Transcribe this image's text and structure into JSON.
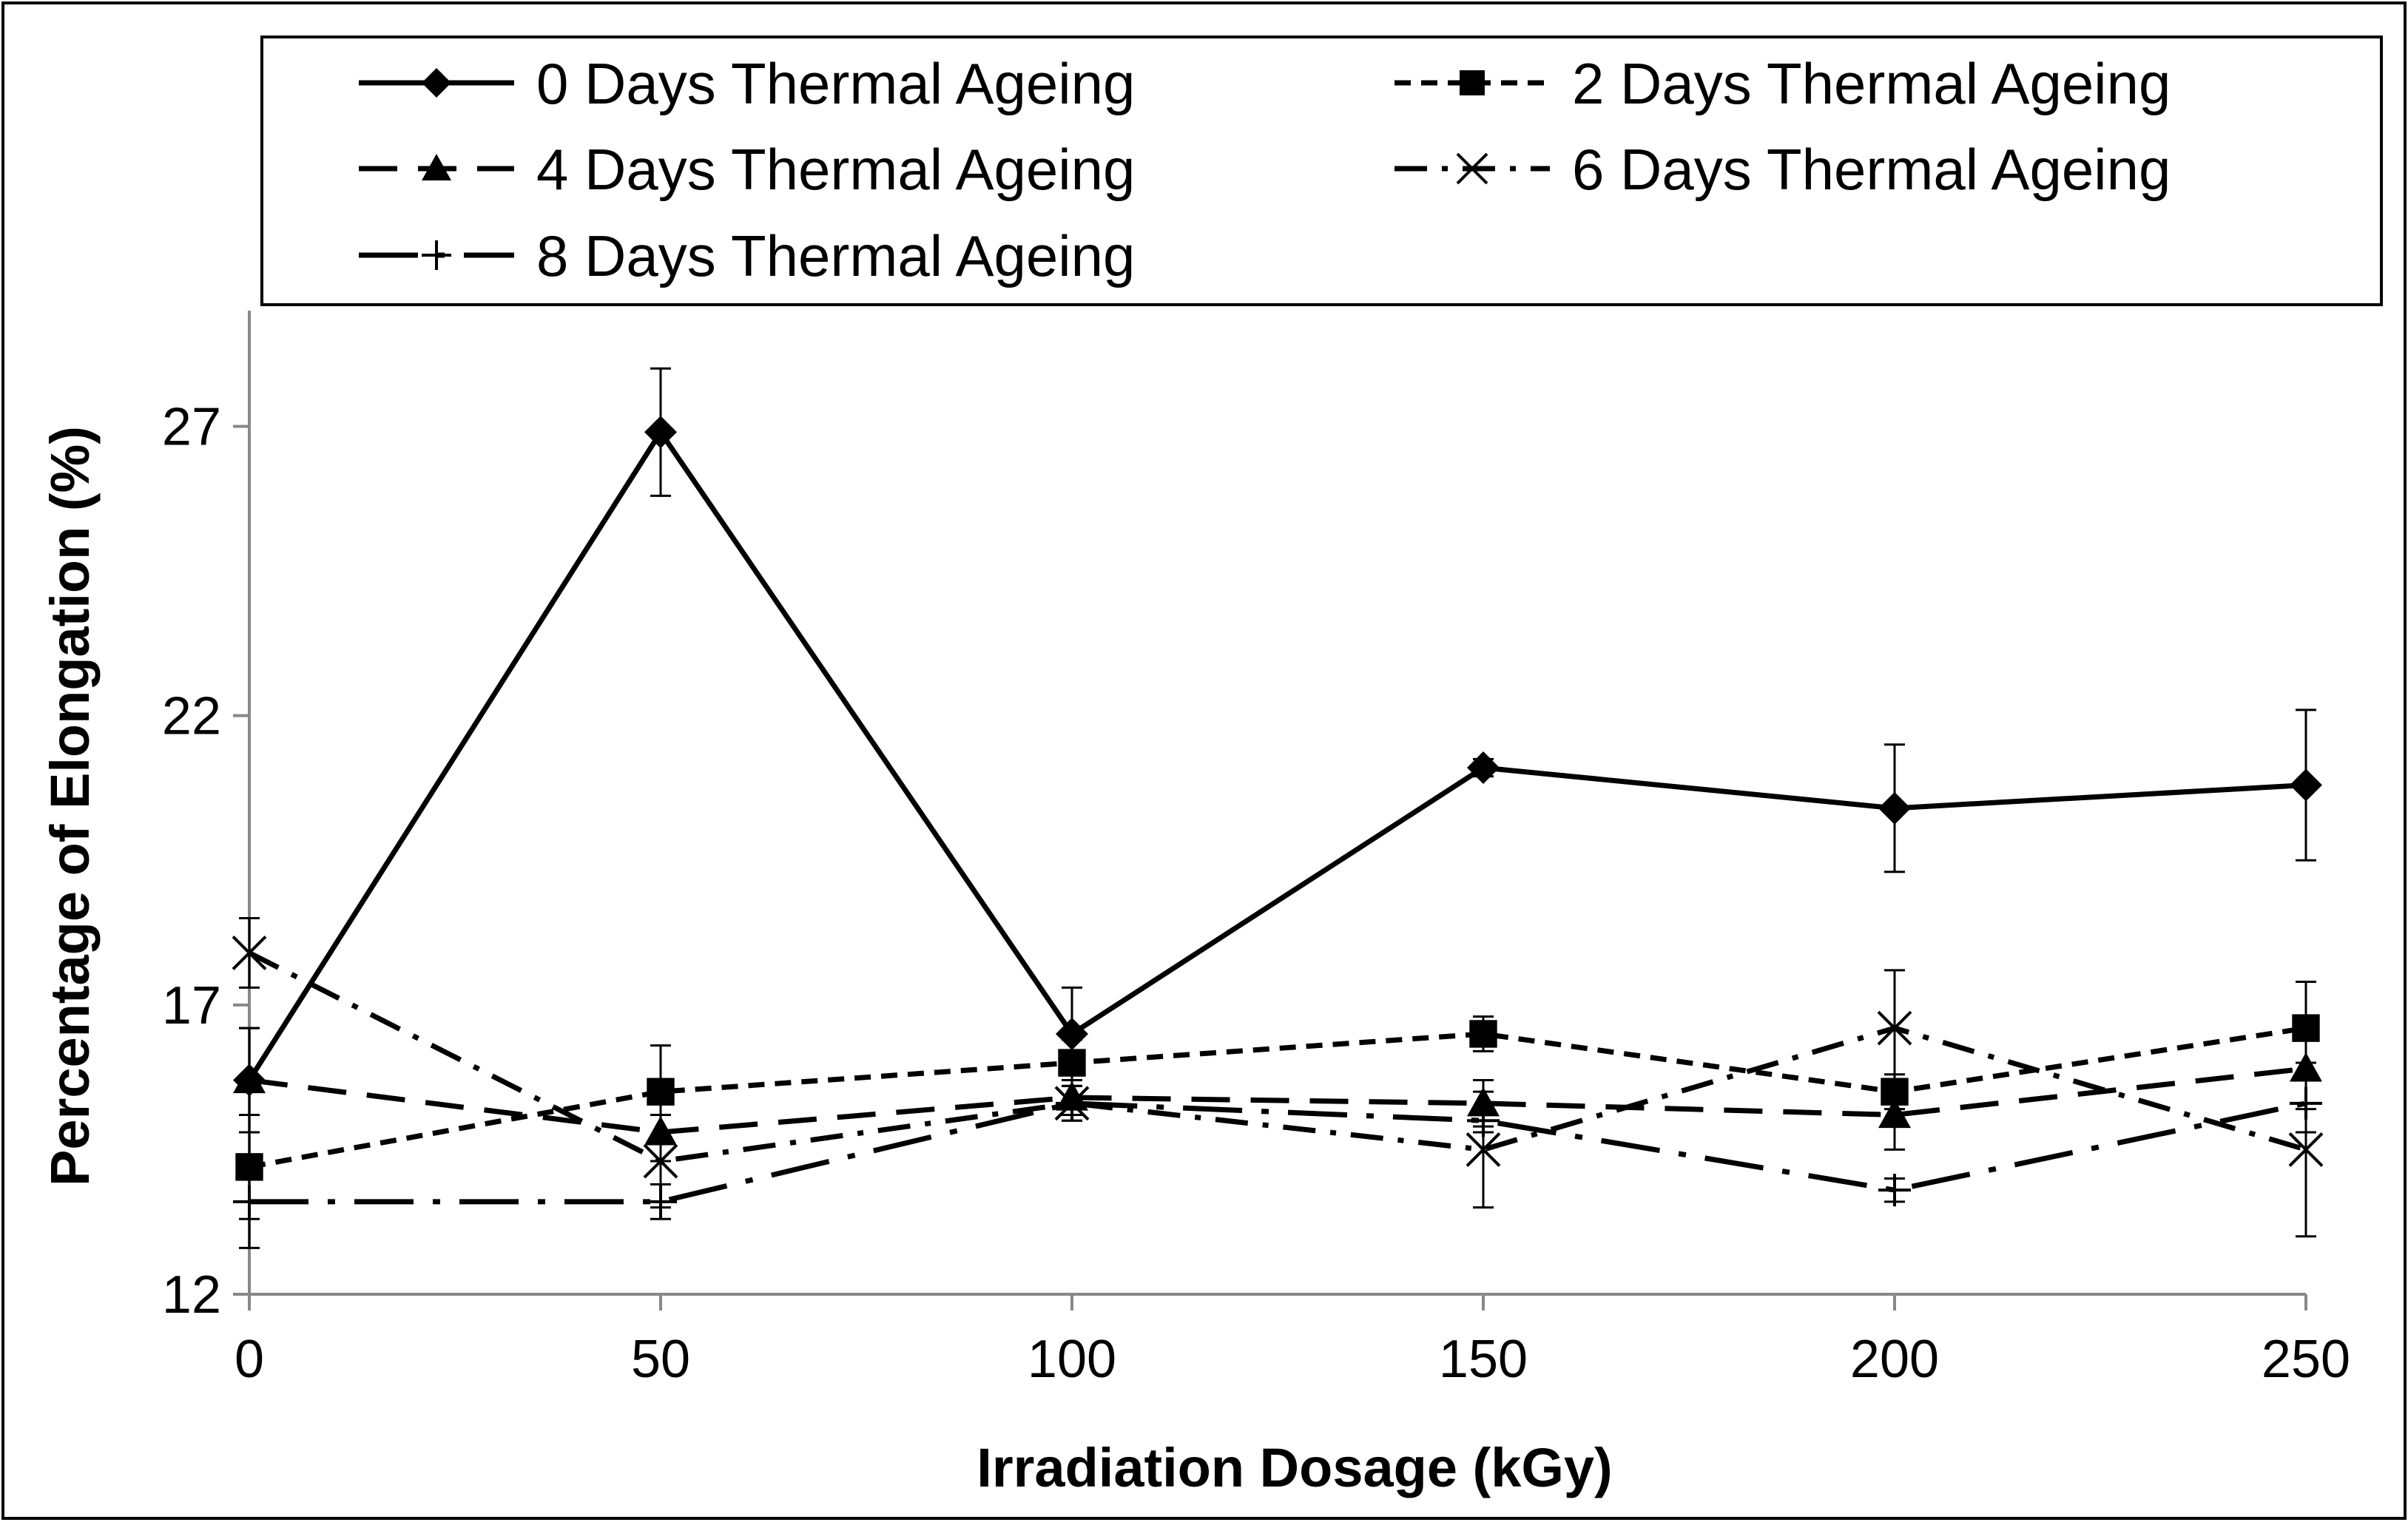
{
  "chart_data": {
    "type": "line",
    "title": "",
    "xlabel": "Irradiation Dosage (kGy)",
    "ylabel": "Percentage of Elongation (%)",
    "x": [
      0,
      50,
      100,
      150,
      200,
      250
    ],
    "xticks": [
      "0",
      "50",
      "100",
      "150",
      "200",
      "250"
    ],
    "yticks": [
      "12",
      "17",
      "22",
      "27"
    ],
    "xlim": [
      0,
      250
    ],
    "ylim": [
      12,
      29
    ],
    "grid": false,
    "legend_position": "top",
    "series": [
      {
        "name": "0 Days Thermal Ageing",
        "marker": "diamond",
        "dash": "solid",
        "values": [
          15.7,
          26.9,
          16.5,
          21.1,
          20.4,
          20.8
        ],
        "errors": [
          0.9,
          1.1,
          0.8,
          0.15,
          1.1,
          1.3
        ]
      },
      {
        "name": "2 Days Thermal Ageing",
        "marker": "square",
        "dash": "short-dash",
        "values": [
          14.2,
          15.5,
          16.0,
          16.5,
          15.5,
          16.6
        ],
        "errors": [
          0.9,
          0.8,
          0.4,
          0.3,
          0.3,
          0.8
        ]
      },
      {
        "name": "4 Days Thermal Ageing",
        "marker": "triangle",
        "dash": "long-dash",
        "values": [
          15.7,
          14.8,
          15.4,
          15.3,
          15.1,
          15.9
        ],
        "errors": [
          0.9,
          0.5,
          0.3,
          0.4,
          0.6,
          0.7
        ]
      },
      {
        "name": "6 Days Thermal Ageing",
        "marker": "x",
        "dash": "dash-dot",
        "values": [
          17.9,
          14.3,
          15.3,
          14.5,
          16.6,
          14.5
        ],
        "errors": [
          0.6,
          0.8,
          0.3,
          1.0,
          1.0,
          1.5
        ]
      },
      {
        "name": "8 Days Thermal Ageing",
        "marker": "plus",
        "dash": "long-dash-dot",
        "values": [
          13.6,
          13.6,
          15.3,
          15.0,
          13.8,
          15.3
        ],
        "errors": [
          0.8,
          0.3,
          0.3,
          0.2,
          0.2,
          0.5
        ]
      }
    ]
  }
}
